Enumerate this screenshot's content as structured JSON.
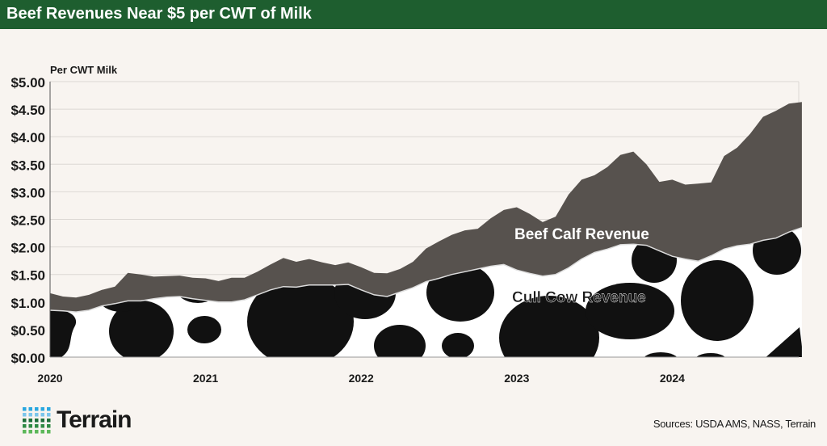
{
  "header": {
    "title": "Beef Revenues Near $5 per CWT of Milk"
  },
  "footer": {
    "logo": "Terrain",
    "source": "Sources: USDA AMS, NASS, Terrain"
  },
  "colors": {
    "title_bar": "#1e5e2f",
    "beef_calf": "#57524e",
    "cull_cow_base": "#ffffff",
    "cull_cow_spots": "#111111",
    "logo_blue": "#2aa7e0",
    "logo_green": "#3a9a48"
  },
  "chart_data": {
    "type": "area",
    "stacked": true,
    "ylabel": "Per CWT Milk",
    "ylim": [
      0,
      5
    ],
    "yticks": [
      "$0.00",
      "$0.50",
      "$1.00",
      "$1.50",
      "$2.00",
      "$2.50",
      "$3.00",
      "$3.50",
      "$4.00",
      "$4.50",
      "$5.00"
    ],
    "xticks": [
      "2020",
      "2021",
      "2022",
      "2023",
      "2024"
    ],
    "x_start": "2020-01",
    "x_frequency": "monthly",
    "grid": true,
    "series": [
      {
        "name": "Cull Cow Revenue",
        "pattern": "cow-spots",
        "values": [
          0.85,
          0.84,
          0.82,
          0.85,
          0.93,
          0.97,
          1.02,
          1.02,
          1.06,
          1.09,
          1.1,
          1.06,
          1.03,
          1.0,
          1.0,
          1.04,
          1.13,
          1.22,
          1.28,
          1.27,
          1.31,
          1.31,
          1.31,
          1.32,
          1.22,
          1.13,
          1.1,
          1.18,
          1.26,
          1.37,
          1.43,
          1.5,
          1.55,
          1.6,
          1.65,
          1.68,
          1.58,
          1.52,
          1.47,
          1.5,
          1.62,
          1.78,
          1.9,
          1.96,
          2.04,
          2.05,
          2.03,
          1.93,
          1.83,
          1.78,
          1.74,
          1.84,
          1.96,
          2.02,
          2.05,
          2.12,
          2.16,
          2.27,
          2.35
        ]
      },
      {
        "name": "Beef Calf Revenue",
        "values": [
          0.31,
          0.26,
          0.26,
          0.28,
          0.29,
          0.31,
          0.51,
          0.48,
          0.4,
          0.38,
          0.38,
          0.38,
          0.4,
          0.38,
          0.44,
          0.4,
          0.42,
          0.46,
          0.52,
          0.46,
          0.47,
          0.41,
          0.36,
          0.4,
          0.41,
          0.4,
          0.42,
          0.42,
          0.47,
          0.6,
          0.67,
          0.72,
          0.75,
          0.73,
          0.87,
          0.99,
          1.14,
          1.08,
          0.98,
          1.05,
          1.33,
          1.44,
          1.4,
          1.49,
          1.63,
          1.68,
          1.47,
          1.25,
          1.39,
          1.35,
          1.41,
          1.33,
          1.69,
          1.78,
          2.0,
          2.24,
          2.31,
          2.33,
          2.28
        ]
      }
    ]
  }
}
